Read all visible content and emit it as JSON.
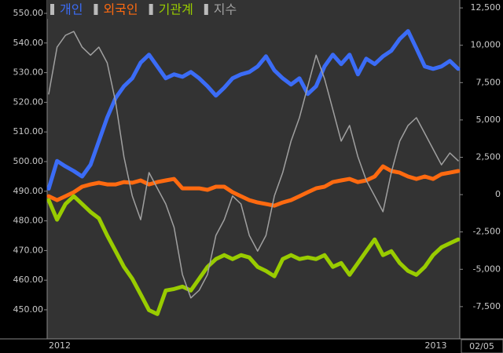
{
  "chart_data": {
    "type": "line",
    "categories": [
      "2012",
      null,
      null,
      null,
      null,
      null,
      null,
      null,
      null,
      null,
      null,
      null,
      null,
      null,
      null,
      null,
      null,
      null,
      null,
      null,
      null,
      null,
      null,
      null,
      null,
      null,
      null,
      null,
      null,
      null,
      null,
      null,
      null,
      null,
      null,
      null,
      null,
      null,
      null,
      null,
      null,
      null,
      null,
      null,
      null,
      "2013",
      null,
      null,
      null,
      null
    ],
    "end_date": "02/05",
    "series": [
      {
        "name": "개인",
        "color": "#3b6cf6",
        "axis": "y2",
        "width": 5,
        "values": [
          400,
          2250,
          1890,
          1580,
          1210,
          2000,
          3580,
          5160,
          6470,
          7260,
          7790,
          8840,
          9370,
          8580,
          7790,
          8050,
          7890,
          8210,
          7790,
          7260,
          6630,
          7160,
          7790,
          8050,
          8210,
          8580,
          9260,
          8320,
          7790,
          7370,
          7790,
          6740,
          7260,
          8580,
          9370,
          8740,
          9370,
          8050,
          9100,
          8740,
          9260,
          9630,
          10420,
          10950,
          9790,
          8580,
          8420,
          8580,
          8950,
          8420
        ]
      },
      {
        "name": "외국인",
        "color": "#ff6a10",
        "axis": "y2",
        "width": 5,
        "values": [
          -105,
          -370,
          -105,
          160,
          530,
          680,
          790,
          680,
          680,
          840,
          790,
          950,
          680,
          840,
          950,
          1050,
          420,
          420,
          420,
          320,
          530,
          530,
          160,
          -105,
          -370,
          -525,
          -630,
          -740,
          -525,
          -370,
          -105,
          160,
          420,
          530,
          840,
          950,
          1050,
          840,
          950,
          1210,
          1890,
          1580,
          1470,
          1210,
          1050,
          1210,
          1050,
          1370,
          1470,
          1580
        ]
      },
      {
        "name": "기관계",
        "color": "#99cc00",
        "axis": "y2",
        "width": 5,
        "values": [
          -370,
          -1680,
          -630,
          -105,
          -630,
          -1160,
          -1580,
          -2740,
          -3790,
          -4840,
          -5630,
          -6680,
          -7740,
          -8000,
          -6420,
          -6320,
          -6160,
          -6420,
          -5630,
          -4840,
          -4320,
          -4050,
          -4320,
          -4050,
          -4210,
          -4840,
          -5110,
          -5470,
          -4320,
          -4050,
          -4320,
          -4210,
          -4320,
          -4050,
          -4840,
          -4580,
          -5370,
          -4580,
          -3790,
          -3000,
          -4050,
          -3790,
          -4580,
          -5110,
          -5370,
          -4840,
          -4050,
          -3530,
          -3260,
          -3000
        ]
      },
      {
        "name": "지수",
        "color": "#a0a0a0",
        "axis": "y",
        "width": 1.5,
        "values": [
          522.8,
          538.6,
          542.6,
          543.9,
          538.6,
          535.9,
          538.6,
          533.3,
          520.1,
          501.6,
          488.4,
          480.4,
          496.3,
          491,
          485.7,
          477.8,
          461.9,
          454,
          456.6,
          461.9,
          475.1,
          480.4,
          488.4,
          485.7,
          475.1,
          469.8,
          475.1,
          488.4,
          496.3,
          506.9,
          514.8,
          525.4,
          535.9,
          528,
          517.5,
          506.9,
          512.2,
          501.6,
          493.7,
          488.4,
          483.1,
          496.3,
          506.9,
          512.2,
          514.8,
          509.5,
          504.2,
          498.9,
          502.9,
          500.3
        ]
      }
    ],
    "ylim": [
      440.2,
      554.5
    ],
    "yticks": [
      {
        "value": 450,
        "label": "450.00"
      },
      {
        "value": 460,
        "label": "460.00"
      },
      {
        "value": 470,
        "label": "470.00"
      },
      {
        "value": 480,
        "label": "480.00"
      },
      {
        "value": 490,
        "label": "490.00"
      },
      {
        "value": 500,
        "label": "500.00"
      },
      {
        "value": 510,
        "label": "510.00"
      },
      {
        "value": 520,
        "label": "520.00"
      },
      {
        "value": 530,
        "label": "530.00"
      },
      {
        "value": 540,
        "label": "540.00"
      },
      {
        "value": 550,
        "label": "550.00"
      }
    ],
    "y2lim": [
      -9660,
      13030
    ],
    "y2ticks": [
      {
        "value": -7500,
        "label": "-7,500"
      },
      {
        "value": -5000,
        "label": "-5,000"
      },
      {
        "value": -2500,
        "label": "-2,500"
      },
      0,
      {
        "value": 2500,
        "label": "2,500"
      },
      {
        "value": 5000,
        "label": "5,000"
      },
      {
        "value": 7500,
        "label": "7,500"
      },
      {
        "value": 10000,
        "label": "10,000"
      },
      {
        "value": 12500,
        "label": "12,500"
      }
    ]
  }
}
